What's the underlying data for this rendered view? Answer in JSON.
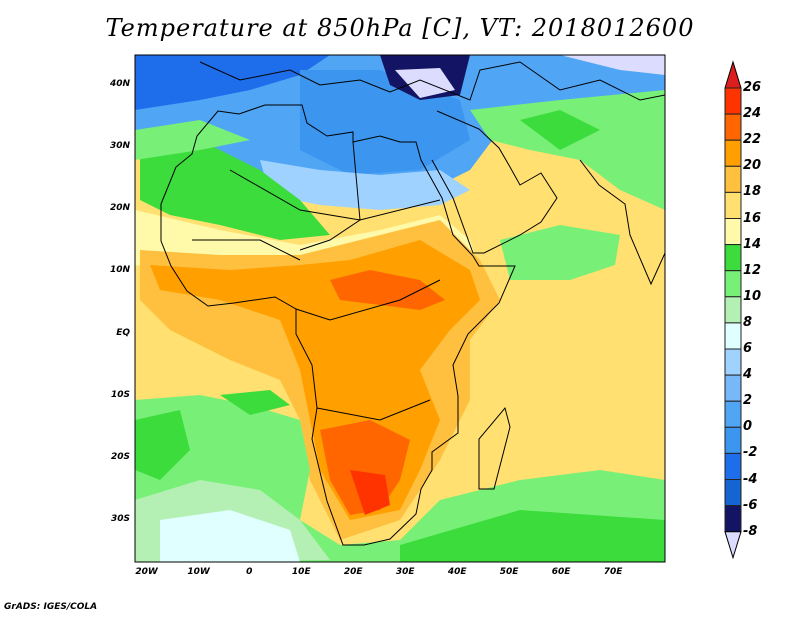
{
  "title": "Temperature at 850hPa [C], VT: 2018012600",
  "footer": "GrADS: IGES/COLA",
  "map": {
    "lon_range": [
      -22,
      80
    ],
    "lat_range": [
      -36.7,
      44.8
    ],
    "lon_ticks": [
      {
        "v": -20,
        "label": "20W"
      },
      {
        "v": -10,
        "label": "10W"
      },
      {
        "v": 0,
        "label": "0"
      },
      {
        "v": 10,
        "label": "10E"
      },
      {
        "v": 20,
        "label": "20E"
      },
      {
        "v": 30,
        "label": "30E"
      },
      {
        "v": 40,
        "label": "40E"
      },
      {
        "v": 50,
        "label": "50E"
      },
      {
        "v": 60,
        "label": "60E"
      },
      {
        "v": 70,
        "label": "70E"
      }
    ],
    "lat_ticks": [
      {
        "v": 40,
        "label": "40N"
      },
      {
        "v": 30,
        "label": "30N"
      },
      {
        "v": 20,
        "label": "20N"
      },
      {
        "v": 10,
        "label": "10N"
      },
      {
        "v": 0,
        "label": "EQ"
      },
      {
        "v": -10,
        "label": "10S"
      },
      {
        "v": -20,
        "label": "20S"
      },
      {
        "v": -30,
        "label": "30S"
      }
    ]
  },
  "colorbar": {
    "above_color": "#dc1e1e",
    "below_color": "#dcdcff",
    "levels": [
      {
        "label": "26",
        "color": "#ff3300"
      },
      {
        "label": "24",
        "color": "#ff6600"
      },
      {
        "label": "22",
        "color": "#ffa000"
      },
      {
        "label": "20",
        "color": "#ffc040"
      },
      {
        "label": "18",
        "color": "#ffe070"
      },
      {
        "label": "16",
        "color": "#fffaaa"
      },
      {
        "label": "14",
        "color": "#3cdc3c"
      },
      {
        "label": "12",
        "color": "#78f078"
      },
      {
        "label": "10",
        "color": "#b4f0b4"
      },
      {
        "label": "8",
        "color": "#e0ffff"
      },
      {
        "label": "6",
        "color": "#a0d2ff"
      },
      {
        "label": "4",
        "color": "#78b8f8"
      },
      {
        "label": "2",
        "color": "#50a5f5"
      },
      {
        "label": "0",
        "color": "#3c96f0"
      },
      {
        "label": "-2",
        "color": "#1e6eeb"
      },
      {
        "label": "-4",
        "color": "#1464d2"
      },
      {
        "label": "-6",
        "color": "#141464"
      },
      {
        "label": "-8",
        "color": null
      }
    ]
  }
}
